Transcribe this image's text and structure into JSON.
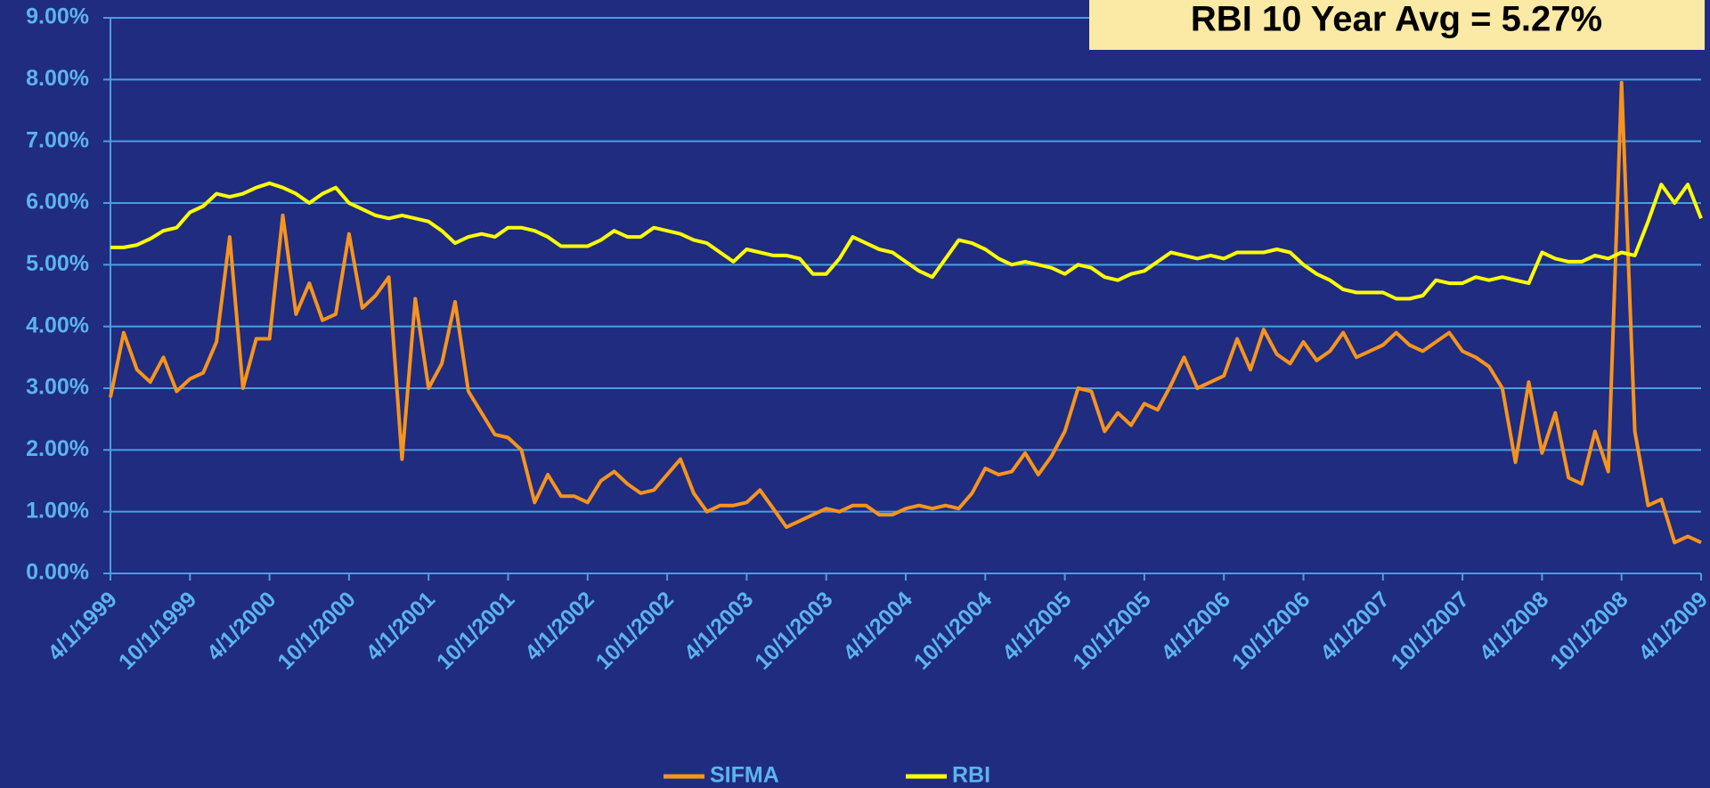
{
  "chart_data": {
    "type": "line",
    "annotation": "RBI 10 Year Avg = 5.27%",
    "categories": [
      "4/1/1999",
      null,
      null,
      null,
      null,
      null,
      "10/1/1999",
      null,
      null,
      null,
      null,
      null,
      "4/1/2000",
      null,
      null,
      null,
      null,
      null,
      "10/1/2000",
      null,
      null,
      null,
      null,
      null,
      "4/1/2001",
      null,
      null,
      null,
      null,
      null,
      "10/1/2001",
      null,
      null,
      null,
      null,
      null,
      "4/1/2002",
      null,
      null,
      null,
      null,
      null,
      "10/1/2002",
      null,
      null,
      null,
      null,
      null,
      "4/1/2003",
      null,
      null,
      null,
      null,
      null,
      "10/1/2003",
      null,
      null,
      null,
      null,
      null,
      "4/1/2004",
      null,
      null,
      null,
      null,
      null,
      "10/1/2004",
      null,
      null,
      null,
      null,
      null,
      "4/1/2005",
      null,
      null,
      null,
      null,
      null,
      "10/1/2005",
      null,
      null,
      null,
      null,
      null,
      "4/1/2006",
      null,
      null,
      null,
      null,
      null,
      "10/1/2006",
      null,
      null,
      null,
      null,
      null,
      "4/1/2007",
      null,
      null,
      null,
      null,
      null,
      "10/1/2007",
      null,
      null,
      null,
      null,
      null,
      "4/1/2008",
      null,
      null,
      null,
      null,
      null,
      "10/1/2008",
      null,
      null,
      null,
      null,
      null,
      "4/1/2009"
    ],
    "series": [
      {
        "name": "SIFMA",
        "color": "#f7941d",
        "values": [
          2.85,
          3.9,
          3.3,
          3.1,
          3.5,
          2.95,
          3.15,
          3.25,
          3.75,
          5.45,
          3.0,
          3.8,
          3.8,
          5.8,
          4.2,
          4.7,
          4.1,
          4.2,
          5.5,
          4.3,
          4.5,
          4.8,
          1.85,
          4.45,
          3.0,
          3.4,
          4.4,
          2.95,
          2.6,
          2.25,
          2.2,
          2.0,
          1.15,
          1.6,
          1.25,
          1.25,
          1.15,
          1.5,
          1.65,
          1.45,
          1.3,
          1.35,
          1.6,
          1.85,
          1.3,
          1.0,
          1.1,
          1.1,
          1.15,
          1.35,
          1.05,
          0.75,
          0.85,
          0.95,
          1.05,
          1.0,
          1.1,
          1.1,
          0.95,
          0.95,
          1.05,
          1.1,
          1.05,
          1.1,
          1.05,
          1.3,
          1.7,
          1.6,
          1.65,
          1.95,
          1.6,
          1.9,
          2.3,
          3.0,
          2.95,
          2.3,
          2.6,
          2.4,
          2.75,
          2.65,
          3.05,
          3.5,
          3.0,
          3.1,
          3.2,
          3.8,
          3.3,
          3.95,
          3.55,
          3.4,
          3.75,
          3.45,
          3.6,
          3.9,
          3.5,
          3.6,
          3.7,
          3.9,
          3.7,
          3.6,
          3.75,
          3.9,
          3.6,
          3.5,
          3.35,
          3.0,
          1.8,
          3.1,
          1.95,
          2.6,
          1.55,
          1.45,
          2.3,
          1.65,
          7.95,
          2.3,
          1.1,
          1.2,
          0.5,
          0.6,
          0.5
        ]
      },
      {
        "name": "RBI",
        "color": "#ffff00",
        "values": [
          5.28,
          5.28,
          5.32,
          5.42,
          5.55,
          5.6,
          5.85,
          5.95,
          6.15,
          6.1,
          6.15,
          6.25,
          6.32,
          6.25,
          6.15,
          6.0,
          6.15,
          6.25,
          6.0,
          5.9,
          5.8,
          5.75,
          5.8,
          5.75,
          5.7,
          5.55,
          5.35,
          5.45,
          5.5,
          5.45,
          5.6,
          5.6,
          5.55,
          5.45,
          5.3,
          5.3,
          5.3,
          5.4,
          5.55,
          5.45,
          5.45,
          5.6,
          5.55,
          5.5,
          5.4,
          5.35,
          5.2,
          5.05,
          5.25,
          5.2,
          5.15,
          5.15,
          5.1,
          4.85,
          4.85,
          5.1,
          5.45,
          5.35,
          5.25,
          5.2,
          5.05,
          4.9,
          4.8,
          5.1,
          5.4,
          5.35,
          5.25,
          5.1,
          5.0,
          5.05,
          5.0,
          4.95,
          4.85,
          5.0,
          4.95,
          4.8,
          4.75,
          4.85,
          4.9,
          5.05,
          5.2,
          5.15,
          5.1,
          5.15,
          5.1,
          5.2,
          5.2,
          5.2,
          5.25,
          5.2,
          5.0,
          4.85,
          4.75,
          4.6,
          4.55,
          4.55,
          4.55,
          4.45,
          4.45,
          4.5,
          4.75,
          4.7,
          4.7,
          4.8,
          4.75,
          4.8,
          4.75,
          4.7,
          5.2,
          5.1,
          5.05,
          5.05,
          5.15,
          5.1,
          5.2,
          5.15,
          5.7,
          6.3,
          6.0,
          6.3,
          5.75
        ]
      }
    ],
    "ylim": [
      0,
      9
    ],
    "yticks": [
      {
        "value": 0,
        "label": "0.00%"
      },
      {
        "value": 1,
        "label": "1.00%"
      },
      {
        "value": 2,
        "label": "2.00%"
      },
      {
        "value": 3,
        "label": "3.00%"
      },
      {
        "value": 4,
        "label": "4.00%"
      },
      {
        "value": 5,
        "label": "5.00%"
      },
      {
        "value": 6,
        "label": "6.00%"
      },
      {
        "value": 7,
        "label": "7.00%"
      },
      {
        "value": 8,
        "label": "8.00%"
      },
      {
        "value": 9,
        "label": "9.00%"
      }
    ],
    "grid": true
  }
}
